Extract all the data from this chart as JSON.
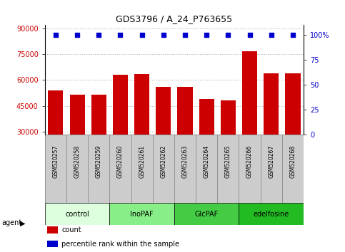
{
  "title": "GDS3796 / A_24_P763655",
  "samples": [
    "GSM520257",
    "GSM520258",
    "GSM520259",
    "GSM520260",
    "GSM520261",
    "GSM520262",
    "GSM520263",
    "GSM520264",
    "GSM520265",
    "GSM520266",
    "GSM520267",
    "GSM520268"
  ],
  "bar_values": [
    54000,
    51500,
    51500,
    63000,
    63500,
    56000,
    56000,
    49000,
    48000,
    77000,
    64000,
    64000
  ],
  "percentile_values": [
    100,
    100,
    100,
    100,
    100,
    100,
    100,
    100,
    100,
    100,
    100,
    100
  ],
  "bar_color": "#cc0000",
  "percentile_color": "#0000cc",
  "ylim_left": [
    28000,
    92000
  ],
  "ylim_right": [
    0,
    110
  ],
  "yticks_left": [
    30000,
    45000,
    60000,
    75000,
    90000
  ],
  "yticks_right": [
    0,
    25,
    50,
    75,
    100
  ],
  "yticklabels_right": [
    "0",
    "25",
    "50",
    "75",
    "100%"
  ],
  "groups": [
    {
      "label": "control",
      "start": 0,
      "end": 3,
      "color": "#ddffdd"
    },
    {
      "label": "InoPAF",
      "start": 3,
      "end": 6,
      "color": "#88ee88"
    },
    {
      "label": "GlcPAF",
      "start": 6,
      "end": 9,
      "color": "#44cc44"
    },
    {
      "label": "edelfosine",
      "start": 9,
      "end": 12,
      "color": "#22bb22"
    }
  ],
  "legend_items": [
    {
      "label": "count",
      "color": "#cc0000"
    },
    {
      "label": "percentile rank within the sample",
      "color": "#0000cc"
    }
  ],
  "xlabel_agent": "agent",
  "background_color": "#ffffff",
  "grid_color": "#aaaaaa",
  "tick_box_color": "#cccccc",
  "tick_box_edge": "#888888"
}
